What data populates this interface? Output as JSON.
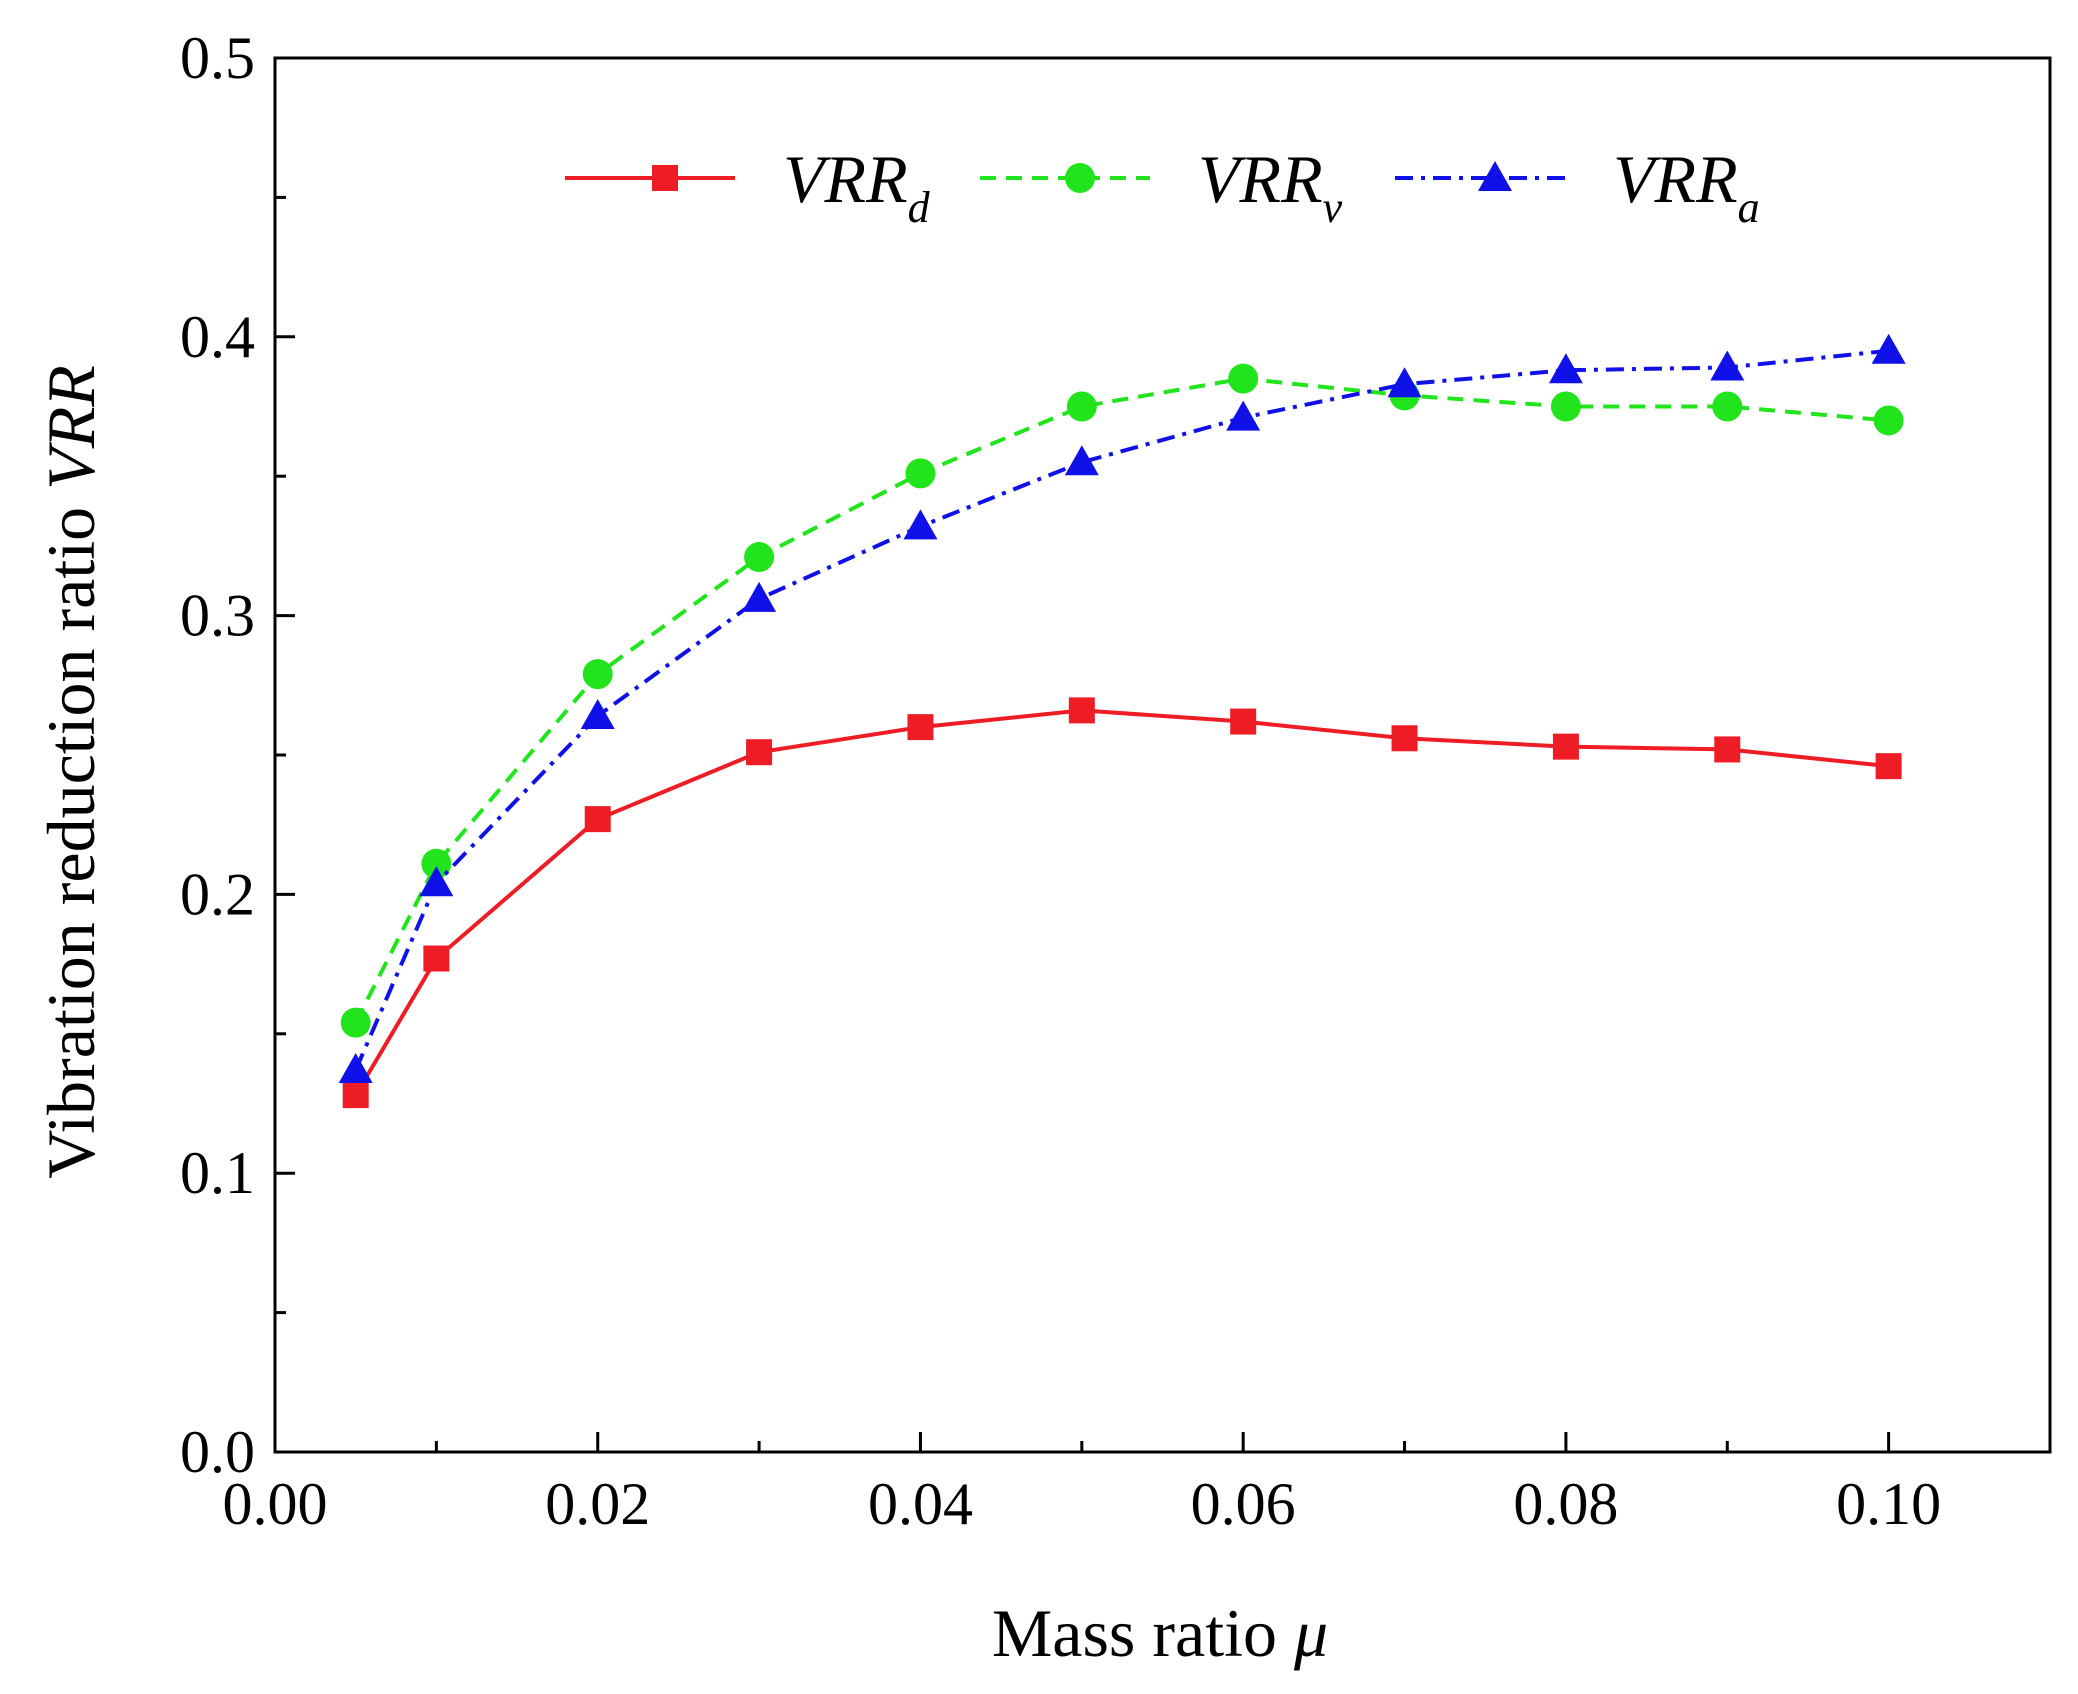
{
  "chart_data": {
    "type": "line",
    "title": "",
    "xlabel": {
      "text": "Mass ratio ",
      "symbol": "μ"
    },
    "ylabel": {
      "text": "Vibration reduction ratio ",
      "symbol": "VRR"
    },
    "xlim": [
      0.0,
      0.11
    ],
    "ylim": [
      0.0,
      0.5
    ],
    "xticks": [
      0.0,
      0.02,
      0.04,
      0.06,
      0.08,
      0.1
    ],
    "xtick_labels": [
      "0.00",
      "0.02",
      "0.04",
      "0.06",
      "0.08",
      "0.10"
    ],
    "xminor": [
      0.01,
      0.03,
      0.05,
      0.07,
      0.09,
      0.11
    ],
    "yticks": [
      0.0,
      0.1,
      0.2,
      0.3,
      0.4,
      0.5
    ],
    "ytick_labels": [
      "0.0",
      "0.1",
      "0.2",
      "0.3",
      "0.4",
      "0.5"
    ],
    "yminor": [
      0.05,
      0.15,
      0.25,
      0.35,
      0.45
    ],
    "grid": false,
    "legend_position": "top",
    "x": [
      0.005,
      0.01,
      0.02,
      0.03,
      0.04,
      0.05,
      0.06,
      0.07,
      0.08,
      0.09,
      0.1
    ],
    "series": [
      {
        "name": "VRR",
        "subscript": "d",
        "color": "#ee1c25",
        "marker": "square",
        "dash": "solid",
        "values": [
          0.128,
          0.177,
          0.227,
          0.251,
          0.26,
          0.266,
          0.262,
          0.256,
          0.253,
          0.252,
          0.246
        ]
      },
      {
        "name": "VRR",
        "subscript": "v",
        "color": "#22e41c",
        "marker": "circle",
        "dash": "dash",
        "values": [
          0.154,
          0.211,
          0.279,
          0.321,
          0.351,
          0.375,
          0.385,
          0.379,
          0.375,
          0.375,
          0.37
        ]
      },
      {
        "name": "VRR",
        "subscript": "a",
        "color": "#1010e8",
        "marker": "triangle",
        "dash": "dashdot",
        "values": [
          0.137,
          0.204,
          0.264,
          0.306,
          0.332,
          0.355,
          0.371,
          0.383,
          0.388,
          0.389,
          0.395
        ]
      }
    ]
  }
}
